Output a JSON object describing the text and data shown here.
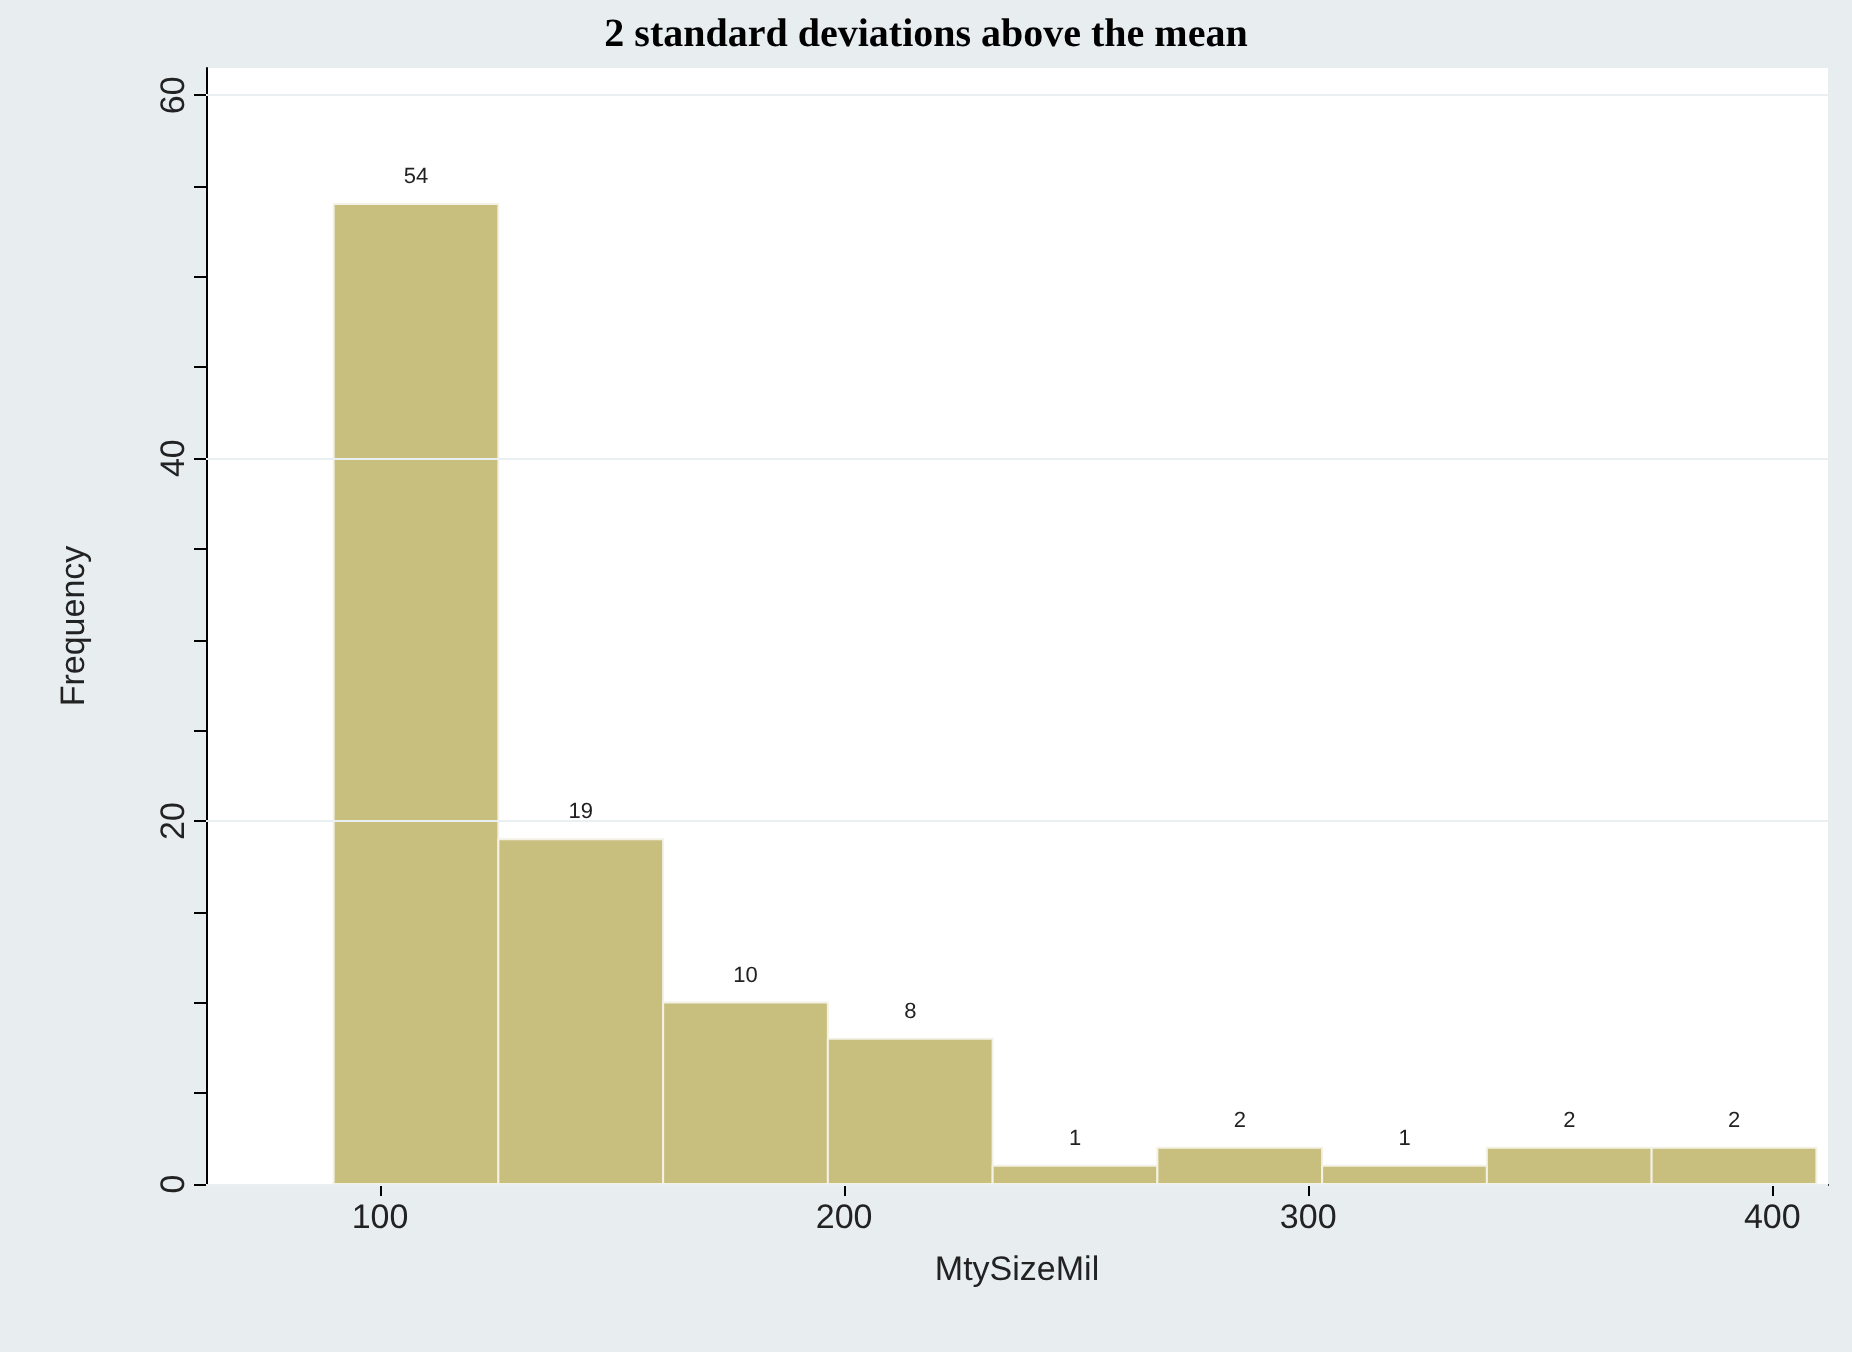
{
  "chart_data": {
    "type": "histogram",
    "title": "2 standard deviations above the mean",
    "xlabel": "MtySizeMil",
    "ylabel": "Frequency",
    "bins": [
      90,
      125.5,
      161,
      196.5,
      232,
      267.5,
      303,
      338.5,
      374,
      409.5
    ],
    "values": [
      54,
      19,
      10,
      8,
      1,
      2,
      1,
      2,
      2
    ],
    "color": "#c8bf7e",
    "xlim": [
      62.5,
      412
    ],
    "xticks": [
      100,
      200,
      300,
      400
    ],
    "ylim": [
      0,
      61.5
    ],
    "yticks": [
      0,
      {
        "value": 5,
        "label": null
      },
      {
        "value": 10,
        "label": null
      },
      {
        "value": 15,
        "label": null
      },
      20,
      {
        "value": 25,
        "label": null
      },
      {
        "value": 30,
        "label": null
      },
      {
        "value": 35,
        "label": null
      },
      40,
      {
        "value": 45,
        "label": null
      },
      {
        "value": 50,
        "label": null
      },
      {
        "value": 55,
        "label": null
      },
      60
    ],
    "grid": "y",
    "data_labels": true
  }
}
